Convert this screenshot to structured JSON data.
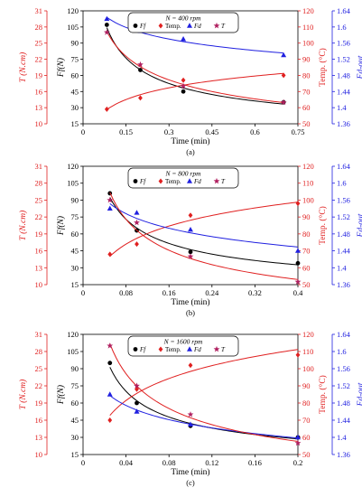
{
  "chart_data": [
    {
      "type": "line",
      "panel_label": "(a)",
      "legend_title": "N = 400 rpm",
      "legend": [
        {
          "key": "ff",
          "label": "Ff",
          "marker": "circle",
          "color": "#000000"
        },
        {
          "key": "temp",
          "label": "Temp.",
          "marker": "diamond",
          "color": "#e02020"
        },
        {
          "key": "fd",
          "label": "Fd",
          "marker": "triangle",
          "color": "#2020e0"
        },
        {
          "key": "t",
          "label": "T",
          "marker": "star",
          "color": "#b02060"
        }
      ],
      "xlabel": "Time (min)",
      "xlim": [
        0,
        0.75
      ],
      "xticks": [
        0,
        0.15,
        0.3,
        0.45,
        0.6,
        0.75
      ],
      "xtick_labels": [
        "0",
        "0.15",
        "0.3",
        "0.45",
        "0.6",
        "0.75"
      ],
      "axes": {
        "T": {
          "label": "T (N.cm)",
          "ylim": [
            10,
            31
          ],
          "ticks": [
            10,
            13,
            16,
            19,
            22,
            25,
            28,
            31
          ],
          "color": "#e02020"
        },
        "Ff": {
          "label": "Ff(N)",
          "ylim": [
            15,
            120
          ],
          "ticks": [
            15,
            30,
            45,
            60,
            75,
            90,
            105,
            120
          ],
          "color": "#000000"
        },
        "Temp": {
          "label": "Temp. (°C)",
          "ylim": [
            50,
            120
          ],
          "ticks": [
            50,
            60,
            70,
            80,
            90,
            100,
            110,
            120
          ],
          "color": "#e02020"
        },
        "Fd": {
          "label": "Fd-out",
          "ylim": [
            1.36,
            1.64
          ],
          "ticks": [
            1.36,
            1.4,
            1.44,
            1.48,
            1.52,
            1.56,
            1.6,
            1.64
          ],
          "tick_labels": [
            "1.36",
            "1.4",
            "1.44",
            "1.48",
            "1.52",
            "1.56",
            "1.6",
            "1.64"
          ],
          "color": "#2020e0"
        }
      },
      "series": [
        {
          "name": "Ff",
          "axis": "Ff",
          "x": [
            0.083,
            0.2,
            0.35,
            0.7
          ],
          "values": [
            107,
            65,
            45,
            35
          ],
          "fit": "power"
        },
        {
          "name": "Temp.",
          "axis": "Temp",
          "x": [
            0.083,
            0.2,
            0.35,
            0.7
          ],
          "values": [
            59,
            66,
            77,
            80
          ],
          "fit": "log"
        },
        {
          "name": "Fd",
          "axis": "Fd",
          "x": [
            0.083,
            0.2,
            0.35,
            0.7
          ],
          "values": [
            1.62,
            1.59,
            1.57,
            1.53
          ],
          "fit": "power"
        },
        {
          "name": "T",
          "axis": "T",
          "x": [
            0.083,
            0.2,
            0.35,
            0.7
          ],
          "values": [
            27,
            21,
            17,
            14
          ],
          "fit": "power"
        }
      ]
    },
    {
      "type": "line",
      "panel_label": "(b)",
      "legend_title": "N = 800 rpm",
      "legend": [
        {
          "key": "ff",
          "label": "Ff",
          "marker": "circle",
          "color": "#000000"
        },
        {
          "key": "temp",
          "label": "Temp.",
          "marker": "diamond",
          "color": "#e02020"
        },
        {
          "key": "fd",
          "label": "Fd",
          "marker": "triangle",
          "color": "#2020e0"
        },
        {
          "key": "t",
          "label": "T",
          "marker": "star",
          "color": "#b02060"
        }
      ],
      "xlabel": "Time (min)",
      "xlim": [
        0,
        0.4
      ],
      "xticks": [
        0,
        0.08,
        0.16,
        0.24,
        0.32,
        0.4
      ],
      "xtick_labels": [
        "0",
        "0.08",
        "0.16",
        "0.24",
        "0.32",
        "0.4"
      ],
      "axes": {
        "T": {
          "label": "T (N.cm)",
          "ylim": [
            10,
            31
          ],
          "ticks": [
            10,
            13,
            16,
            19,
            22,
            25,
            28,
            31
          ],
          "color": "#e02020"
        },
        "Ff": {
          "label": "Ff(N)",
          "ylim": [
            15,
            120
          ],
          "ticks": [
            15,
            30,
            45,
            60,
            75,
            90,
            105,
            120
          ],
          "color": "#000000"
        },
        "Temp": {
          "label": "Temp. (°C)",
          "ylim": [
            50,
            120
          ],
          "ticks": [
            50,
            60,
            70,
            80,
            90,
            100,
            110,
            120
          ],
          "color": "#e02020"
        },
        "Fd": {
          "label": "Fd-out",
          "ylim": [
            1.36,
            1.64
          ],
          "ticks": [
            1.36,
            1.4,
            1.44,
            1.48,
            1.52,
            1.56,
            1.6,
            1.64
          ],
          "tick_labels": [
            "1.36",
            "1.4",
            "1.44",
            "1.48",
            "1.52",
            "1.56",
            "1.6",
            "1.64"
          ],
          "color": "#2020e0"
        }
      },
      "series": [
        {
          "name": "Ff",
          "axis": "Ff",
          "x": [
            0.05,
            0.1,
            0.2,
            0.4
          ],
          "values": [
            96,
            63,
            44,
            34
          ],
          "fit": "power"
        },
        {
          "name": "Temp.",
          "axis": "Temp",
          "x": [
            0.05,
            0.1,
            0.2,
            0.4
          ],
          "values": [
            68,
            74,
            91,
            98
          ],
          "fit": "log"
        },
        {
          "name": "Fd",
          "axis": "Fd",
          "x": [
            0.05,
            0.1,
            0.2,
            0.4
          ],
          "values": [
            1.54,
            1.53,
            1.49,
            1.44
          ],
          "fit": "power"
        },
        {
          "name": "T",
          "axis": "T",
          "x": [
            0.05,
            0.1,
            0.2,
            0.4
          ],
          "values": [
            25,
            21,
            15,
            10.5
          ],
          "fit": "power"
        }
      ]
    },
    {
      "type": "line",
      "panel_label": "(c)",
      "legend_title": "N = 1600 rpm",
      "legend": [
        {
          "key": "ff",
          "label": "Ff",
          "marker": "circle",
          "color": "#000000"
        },
        {
          "key": "temp",
          "label": "Temp.",
          "marker": "diamond",
          "color": "#e02020"
        },
        {
          "key": "fd",
          "label": "Fd",
          "marker": "triangle",
          "color": "#2020e0"
        },
        {
          "key": "t",
          "label": "T",
          "marker": "star",
          "color": "#b02060"
        }
      ],
      "xlabel": "Time (min)",
      "xlim": [
        0,
        0.2
      ],
      "xticks": [
        0,
        0.04,
        0.08,
        0.12,
        0.16,
        0.2
      ],
      "xtick_labels": [
        "0",
        "0.04",
        "0.08",
        "0.12",
        "0.16",
        "0.2"
      ],
      "axes": {
        "T": {
          "label": "T (N.cm)",
          "ylim": [
            10,
            31
          ],
          "ticks": [
            10,
            13,
            16,
            19,
            22,
            25,
            28,
            31
          ],
          "color": "#e02020"
        },
        "Ff": {
          "label": "Ff(N)",
          "ylim": [
            15,
            120
          ],
          "ticks": [
            15,
            30,
            45,
            60,
            75,
            90,
            105,
            120
          ],
          "color": "#000000"
        },
        "Temp": {
          "label": "Temp. (°C)",
          "ylim": [
            50,
            120
          ],
          "ticks": [
            50,
            60,
            70,
            80,
            90,
            100,
            110,
            120
          ],
          "color": "#e02020"
        },
        "Fd": {
          "label": "Fd-out",
          "ylim": [
            1.36,
            1.64
          ],
          "ticks": [
            1.36,
            1.4,
            1.44,
            1.48,
            1.52,
            1.56,
            1.6,
            1.64
          ],
          "tick_labels": [
            "1.36",
            "1.4",
            "1.44",
            "1.48",
            "1.52",
            "1.56",
            "1.6",
            "1.64"
          ],
          "color": "#2020e0"
        }
      },
      "series": [
        {
          "name": "Ff",
          "axis": "Ff",
          "x": [
            0.025,
            0.05,
            0.1,
            0.2
          ],
          "values": [
            95,
            60,
            40,
            30
          ],
          "fit": "power"
        },
        {
          "name": "Temp.",
          "axis": "Temp",
          "x": [
            0.025,
            0.05,
            0.1,
            0.2
          ],
          "values": [
            70,
            88,
            102,
            108
          ],
          "fit": "log"
        },
        {
          "name": "Fd",
          "axis": "Fd",
          "x": [
            0.025,
            0.05,
            0.1,
            0.2
          ],
          "values": [
            1.5,
            1.46,
            1.43,
            1.4
          ],
          "fit": "power"
        },
        {
          "name": "T",
          "axis": "T",
          "x": [
            0.025,
            0.05,
            0.1,
            0.2
          ],
          "values": [
            29,
            22,
            17,
            12
          ],
          "fit": "power"
        }
      ]
    }
  ]
}
